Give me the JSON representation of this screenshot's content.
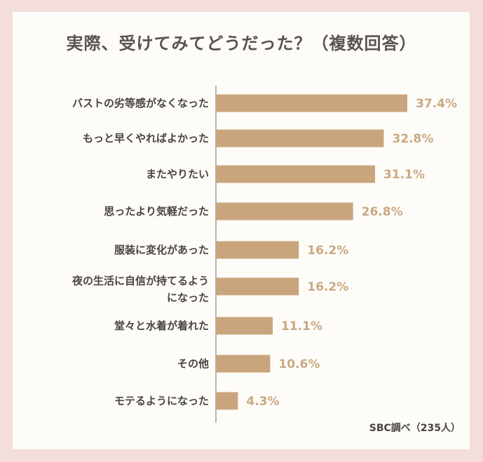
{
  "chart_data": {
    "type": "bar",
    "orientation": "horizontal",
    "title": "実際、受けてみてどうだった？（複数回答）",
    "categories": [
      [
        "バストの劣等感がなくなった"
      ],
      [
        "もっと早くやればよかった"
      ],
      [
        "またやりたい"
      ],
      [
        "思ったより気軽だった"
      ],
      [
        "服装に変化があった"
      ],
      [
        "夜の生活に自信が持てるよう",
        "になった"
      ],
      [
        "堂々と水着が着れた"
      ],
      [
        "その他"
      ],
      [
        "モテるようになった"
      ]
    ],
    "values": [
      37.4,
      32.8,
      31.1,
      26.8,
      16.2,
      16.2,
      11.1,
      10.6,
      4.3
    ],
    "value_labels": [
      "37.4%",
      "32.8%",
      "31.1%",
      "26.8%",
      "16.2%",
      "16.2%",
      "11.1%",
      "10.6%",
      "4.3%"
    ],
    "xlim": [
      0,
      40
    ],
    "bar_color": "#c9a57d",
    "label_color": "#c9a882",
    "source": "SBC調べ（235人）"
  }
}
